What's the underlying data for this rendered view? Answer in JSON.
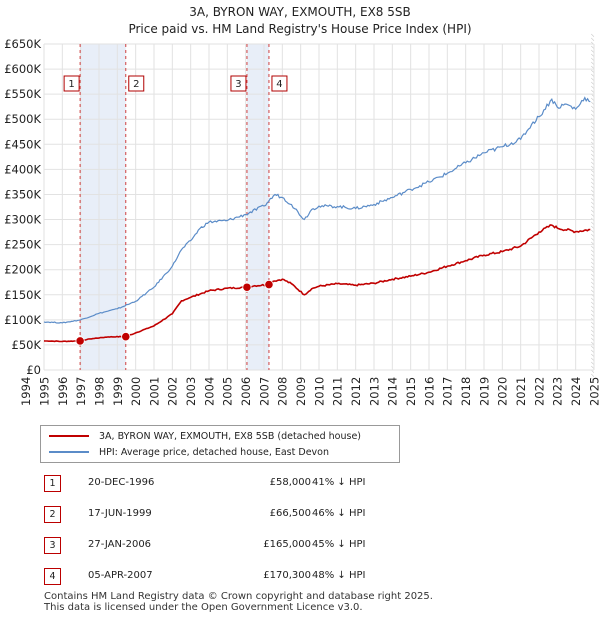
{
  "title_line1": "3A, BYRON WAY, EXMOUTH, EX8 5SB",
  "title_line2": "Price paid vs. HM Land Registry's House Price Index (HPI)",
  "chart_data": {
    "type": "line",
    "title": "3A, BYRON WAY, EXMOUTH, EX8 5SB — Price paid vs. HM Land Registry's House Price Index (HPI)",
    "xlim": [
      1995.0,
      2025.0
    ],
    "ylim": [
      0,
      650000
    ],
    "y_ticks": [
      {
        "value": 0,
        "label": "£0"
      },
      {
        "value": 50000,
        "label": "£50K"
      },
      {
        "value": 100000,
        "label": "£100K"
      },
      {
        "value": 150000,
        "label": "£150K"
      },
      {
        "value": 200000,
        "label": "£200K"
      },
      {
        "value": 250000,
        "label": "£250K"
      },
      {
        "value": 300000,
        "label": "£300K"
      },
      {
        "value": 350000,
        "label": "£350K"
      },
      {
        "value": 400000,
        "label": "£400K"
      },
      {
        "value": 450000,
        "label": "£450K"
      },
      {
        "value": 500000,
        "label": "£500K"
      },
      {
        "value": 550000,
        "label": "£550K"
      },
      {
        "value": 600000,
        "label": "£600K"
      },
      {
        "value": 650000,
        "label": "£650K"
      }
    ],
    "x_ticks": [
      "1994",
      "1995",
      "1996",
      "1997",
      "1998",
      "1999",
      "2000",
      "2001",
      "2002",
      "2003",
      "2004",
      "2005",
      "2006",
      "2007",
      "2008",
      "2009",
      "2010",
      "2011",
      "2012",
      "2013",
      "2014",
      "2015",
      "2016",
      "2017",
      "2018",
      "2019",
      "2020",
      "2021",
      "2022",
      "2023",
      "2024",
      "2025"
    ],
    "grid": true,
    "series": [
      {
        "name": "3A, BYRON WAY, EXMOUTH, EX8 5SB (detached house)",
        "color": "#c00000",
        "x": [
          1995.0,
          1996.0,
          1996.97,
          1997.5,
          1998.5,
          1999.46,
          2000.0,
          2001.0,
          2002.0,
          2002.5,
          2003.0,
          2004.0,
          2005.0,
          2006.07,
          2006.5,
          2007.27,
          2007.5,
          2008.0,
          2008.5,
          2009.2,
          2009.6,
          2010.0,
          2011.0,
          2012.0,
          2013.0,
          2014.0,
          2015.0,
          2016.0,
          2017.0,
          2018.0,
          2019.0,
          2020.0,
          2021.0,
          2022.0,
          2022.7,
          2023.0,
          2024.0,
          2024.8
        ],
        "y": [
          58000,
          57000,
          58000,
          62000,
          66000,
          66500,
          74000,
          88000,
          112000,
          138000,
          145000,
          158000,
          163000,
          165000,
          168000,
          170300,
          177000,
          181000,
          172000,
          150000,
          162000,
          167000,
          172000,
          169000,
          173000,
          181000,
          187000,
          195000,
          207000,
          218000,
          229000,
          236000,
          247000,
          275000,
          289000,
          283000,
          276000,
          280000
        ]
      },
      {
        "name": "HPI: Average price, detached house, East Devon",
        "color": "#5b8cc8",
        "x": [
          1995.0,
          1996.0,
          1997.0,
          1998.0,
          1999.0,
          2000.0,
          2001.0,
          2002.0,
          2002.5,
          2003.0,
          2003.5,
          2004.0,
          2005.0,
          2006.0,
          2007.0,
          2007.6,
          2008.0,
          2008.5,
          2009.2,
          2009.6,
          2010.0,
          2011.0,
          2012.0,
          2013.0,
          2014.0,
          2015.0,
          2016.0,
          2017.0,
          2018.0,
          2019.0,
          2020.0,
          2021.0,
          2021.6,
          2022.0,
          2022.7,
          2023.0,
          2023.5,
          2024.0,
          2024.5,
          2024.8
        ],
        "y": [
          96000,
          94000,
          100000,
          113000,
          122000,
          137000,
          165000,
          207000,
          240000,
          258000,
          282000,
          295000,
          298000,
          310000,
          327000,
          350000,
          344000,
          330000,
          300000,
          320000,
          327000,
          326000,
          322000,
          330000,
          344000,
          360000,
          375000,
          392000,
          413000,
          433000,
          445000,
          460000,
          490000,
          505000,
          540000,
          524000,
          530000,
          520000,
          543000,
          535000
        ]
      }
    ],
    "transactions": [
      {
        "label": "1",
        "date": "20-DEC-1996",
        "x": 1996.97,
        "price": 58000,
        "price_label": "£58,000",
        "hpi": "41% ↓ HPI"
      },
      {
        "label": "2",
        "date": "17-JUN-1999",
        "x": 1999.46,
        "price": 66500,
        "price_label": "£66,500",
        "hpi": "46% ↓ HPI"
      },
      {
        "label": "3",
        "date": "27-JAN-2006",
        "x": 2006.07,
        "price": 165000,
        "price_label": "£165,000",
        "hpi": "45% ↓ HPI"
      },
      {
        "label": "4",
        "date": "05-APR-2007",
        "x": 2007.27,
        "price": 170300,
        "price_label": "£170,300",
        "hpi": "48% ↓ HPI"
      }
    ]
  },
  "legend": [
    {
      "label": "3A, BYRON WAY, EXMOUTH, EX8 5SB (detached house)",
      "color": "#c00000"
    },
    {
      "label": "HPI: Average price, detached house, East Devon",
      "color": "#5b8cc8"
    }
  ],
  "footer_line1": "Contains HM Land Registry data © Crown copyright and database right 2025.",
  "footer_line2": "This data is licensed under the Open Government Licence v3.0."
}
